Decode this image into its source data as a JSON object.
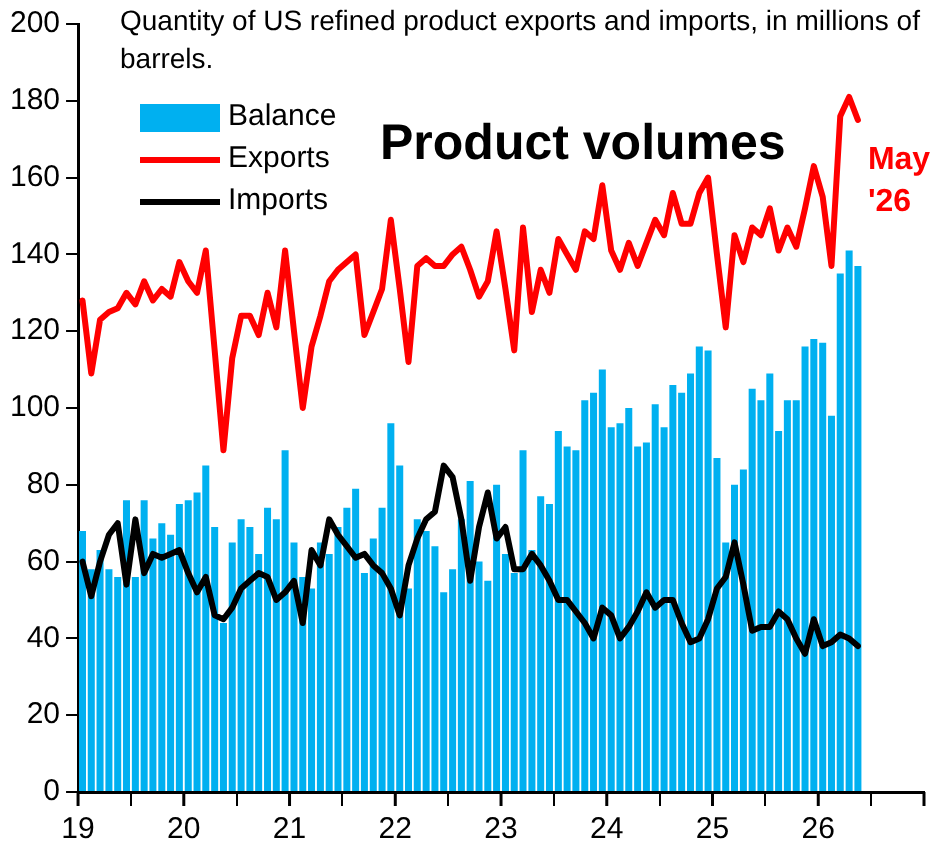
{
  "chart_data": {
    "type": "line",
    "title": "Product volumes",
    "subtitle": "Quantity of US refined product exports and imports, in millions of barrels.",
    "x": [
      2019.042,
      2019.125,
      2019.208,
      2019.292,
      2019.375,
      2019.458,
      2019.542,
      2019.625,
      2019.708,
      2019.792,
      2019.875,
      2019.958,
      2020.042,
      2020.125,
      2020.208,
      2020.292,
      2020.375,
      2020.458,
      2020.542,
      2020.625,
      2020.708,
      2020.792,
      2020.875,
      2020.958,
      2021.042,
      2021.125,
      2021.208,
      2021.292,
      2021.375,
      2021.458,
      2021.542,
      2021.625,
      2021.708,
      2021.792,
      2021.875,
      2021.958,
      2022.042,
      2022.125,
      2022.208,
      2022.292,
      2022.375,
      2022.458,
      2022.542,
      2022.625,
      2022.708,
      2022.792,
      2022.875,
      2022.958,
      2023.042,
      2023.125,
      2023.208,
      2023.292,
      2023.375,
      2023.458,
      2023.542,
      2023.625,
      2023.708,
      2023.792,
      2023.875,
      2023.958,
      2024.042,
      2024.125,
      2024.208,
      2024.292,
      2024.375,
      2024.458,
      2024.542,
      2024.625,
      2024.708,
      2024.792,
      2024.875,
      2024.958,
      2025.042,
      2025.125,
      2025.208,
      2025.292,
      2025.375,
      2025.458,
      2025.542,
      2025.625,
      2025.708,
      2025.792,
      2025.875,
      2025.958,
      2026.042,
      2026.125,
      2026.208,
      2026.292,
      2026.375
    ],
    "series": [
      {
        "name": "Balance",
        "type": "bar",
        "color": "#00b0f0",
        "values": [
          68,
          58,
          63,
          58,
          56,
          76,
          56,
          76,
          66,
          70,
          67,
          75,
          76,
          78,
          85,
          69,
          44,
          65,
          71,
          69,
          62,
          74,
          71,
          89,
          65,
          56,
          53,
          65,
          62,
          69,
          74,
          79,
          57,
          66,
          74,
          96,
          85,
          53,
          71,
          68,
          64,
          52,
          58,
          71,
          81,
          60,
          55,
          80,
          62,
          57,
          89,
          63,
          77,
          75,
          94,
          90,
          89,
          102,
          104,
          110,
          95,
          96,
          100,
          90,
          91,
          101,
          95,
          106,
          104,
          109,
          116,
          115,
          87,
          65,
          80,
          84,
          105,
          102,
          109,
          94,
          102,
          102,
          116,
          118,
          117,
          98,
          135,
          141,
          137
        ]
      },
      {
        "name": "Exports",
        "color": "#ff0000",
        "values": [
          128,
          109,
          123,
          125,
          126,
          130,
          127,
          133,
          128,
          131,
          129,
          138,
          133,
          130,
          141,
          115,
          89,
          113,
          124,
          124,
          119,
          130,
          121,
          141,
          120,
          100,
          116,
          124,
          133,
          136,
          138,
          140,
          119,
          125,
          131,
          149,
          131,
          112,
          137,
          139,
          137,
          137,
          140,
          142,
          136,
          129,
          133,
          146,
          131,
          115,
          147,
          125,
          136,
          130,
          144,
          140,
          136,
          146,
          144,
          158,
          141,
          136,
          143,
          137,
          143,
          149,
          145,
          156,
          148,
          148,
          156,
          160,
          140,
          121,
          145,
          138,
          147,
          145,
          152,
          141,
          147,
          142,
          152,
          163,
          155,
          137,
          176,
          181,
          175
        ]
      },
      {
        "name": "Imports",
        "color": "#000000",
        "values": [
          60,
          51,
          60,
          67,
          70,
          54,
          71,
          57,
          62,
          61,
          62,
          63,
          57,
          52,
          56,
          46,
          45,
          48,
          53,
          55,
          57,
          56,
          50,
          52,
          55,
          44,
          63,
          59,
          71,
          67,
          64,
          61,
          62,
          59,
          57,
          53,
          46,
          59,
          66,
          71,
          73,
          85,
          82,
          71,
          55,
          69,
          78,
          66,
          69,
          58,
          58,
          62,
          59,
          55,
          50,
          50,
          47,
          44,
          40,
          48,
          46,
          40,
          43,
          47,
          52,
          48,
          50,
          50,
          44,
          39,
          40,
          45,
          53,
          56,
          65,
          54,
          42,
          43,
          43,
          47,
          45,
          40,
          36,
          45,
          38,
          39,
          41,
          40,
          38
        ]
      }
    ],
    "xlim": [
      2019,
      2027
    ],
    "xticks": [
      {
        "value": 2019,
        "label": "19"
      },
      {
        "value": 2020,
        "label": "20"
      },
      {
        "value": 2021,
        "label": "21"
      },
      {
        "value": 2022,
        "label": "22"
      },
      {
        "value": 2023,
        "label": "23"
      },
      {
        "value": 2024,
        "label": "24"
      },
      {
        "value": 2025,
        "label": "25"
      },
      {
        "value": 2026,
        "label": "26"
      },
      {
        "value": 2027,
        "label": null
      }
    ],
    "ylim": [
      0,
      200
    ],
    "yticks": [
      0,
      20,
      40,
      60,
      80,
      100,
      120,
      140,
      160,
      180,
      200
    ],
    "grid": false,
    "legend": "top left",
    "marker": "none",
    "annotations": [
      {
        "text": "May '26",
        "x": 2026.375,
        "y": 175
      }
    ]
  }
}
